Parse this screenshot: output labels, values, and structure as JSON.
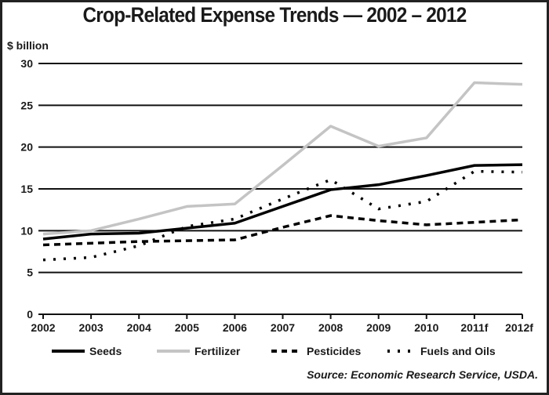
{
  "chart_data": {
    "type": "line",
    "title": "Crop-Related Expense Trends — 2002 – 2012",
    "ylabel": "$ billion",
    "xlabel": "",
    "ylim": [
      0,
      30
    ],
    "yticks": [
      "0",
      "5",
      "10",
      "15",
      "20",
      "25",
      "30"
    ],
    "ytick_values": [
      0,
      5,
      10,
      15,
      20,
      25,
      30
    ],
    "categories": [
      "2002",
      "2003",
      "2004",
      "2005",
      "2006",
      "2007",
      "2008",
      "2009",
      "2010",
      "2011f",
      "2012f"
    ],
    "grid": true,
    "legend_position": "bottom",
    "series": [
      {
        "name": "Seeds",
        "style": "solid",
        "color": "#000000",
        "values": [
          9.0,
          9.6,
          9.7,
          10.3,
          10.9,
          12.9,
          14.9,
          15.5,
          16.6,
          17.8,
          17.9
        ]
      },
      {
        "name": "Fertilizer",
        "style": "solid",
        "color": "#c4c4c4",
        "values": [
          9.6,
          10.0,
          11.4,
          12.9,
          13.2,
          17.8,
          22.5,
          20.1,
          21.1,
          27.7,
          27.5
        ]
      },
      {
        "name": "Pesticides",
        "style": "dashed",
        "color": "#000000",
        "values": [
          8.3,
          8.5,
          8.7,
          8.8,
          8.9,
          10.4,
          11.8,
          11.2,
          10.7,
          11.0,
          11.3
        ]
      },
      {
        "name": "Fuels and Oils",
        "style": "dotted",
        "color": "#000000",
        "values": [
          6.5,
          6.8,
          8.2,
          10.5,
          11.4,
          13.8,
          16.1,
          12.6,
          13.5,
          17.1,
          17.0
        ]
      }
    ],
    "source": "Source: Economic Research Service, USDA."
  }
}
